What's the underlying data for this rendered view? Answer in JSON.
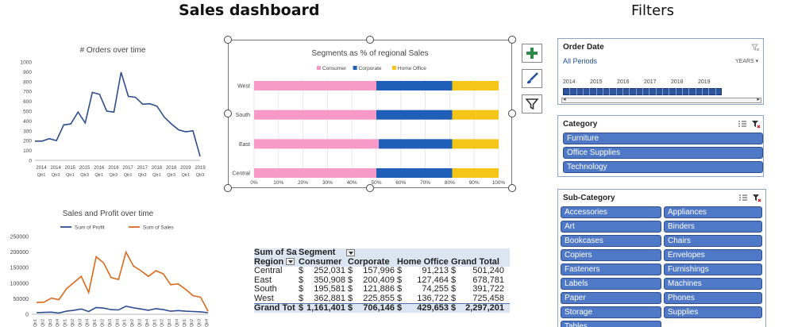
{
  "dashboard_title": "Sales dashboard",
  "filters_title": "Filters",
  "chart_data": [
    {
      "type": "line",
      "title": "# Orders over time",
      "x_labels": [
        [
          "2014",
          "Qtr1"
        ],
        [
          "2014",
          "Qtr3"
        ],
        [
          "2015",
          "Qtr1"
        ],
        [
          "2015",
          "Qtr3"
        ],
        [
          "2016",
          "Qtr1"
        ],
        [
          "2016",
          "Qtr3"
        ],
        [
          "2017",
          "Qtr1"
        ],
        [
          "2017",
          "Qtr3"
        ],
        [
          "2018",
          "Qtr1"
        ],
        [
          "2018",
          "Qtr3"
        ],
        [
          "2019",
          "Qtr1"
        ],
        [
          "2019",
          "Qtr3"
        ]
      ],
      "values": [
        195,
        195,
        220,
        200,
        360,
        370,
        490,
        380,
        690,
        670,
        500,
        490,
        895,
        650,
        640,
        570,
        575,
        550,
        440,
        370,
        310,
        290,
        300,
        40
      ],
      "yticks": [
        0,
        100,
        200,
        300,
        400,
        500,
        600,
        700,
        800,
        900,
        1000
      ],
      "ylim": [
        0,
        1000
      ],
      "color": "#2e4f8f"
    },
    {
      "type": "bar",
      "stacked": true,
      "title": "Segments as % of regional Sales",
      "categories": [
        "West",
        "South",
        "East",
        "Central"
      ],
      "series": [
        {
          "name": "Consumer",
          "color": "#f79ac8",
          "values": [
            50,
            50,
            51,
            50
          ]
        },
        {
          "name": "Corporate",
          "color": "#1f5fb8",
          "values": [
            31,
            31,
            30,
            31
          ]
        },
        {
          "name": "Home Office",
          "color": "#f5c518",
          "values": [
            19,
            19,
            19,
            19
          ]
        }
      ],
      "xticks": [
        "0%",
        "10%",
        "20%",
        "30%",
        "40%",
        "50%",
        "60%",
        "70%",
        "80%",
        "90%",
        "100%"
      ],
      "xlim": [
        0,
        100
      ]
    },
    {
      "type": "line",
      "title": "Sales and Profit over time",
      "series": [
        {
          "name": "Sum of Profit",
          "color": "#2e4f8f",
          "values": [
            5000,
            6000,
            7000,
            4000,
            10000,
            13000,
            17000,
            9000,
            22000,
            20000,
            15000,
            14000,
            26000,
            21000,
            17000,
            13000,
            18000,
            15000,
            10000,
            12000,
            10000,
            9000,
            8000,
            5000
          ]
        },
        {
          "name": "Sum of Sales",
          "color": "#d96a1b",
          "values": [
            38000,
            39000,
            52000,
            47000,
            82000,
            102000,
            122000,
            70000,
            185000,
            165000,
            118000,
            112000,
            200000,
            155000,
            140000,
            122000,
            140000,
            130000,
            95000,
            98000,
            80000,
            60000,
            55000,
            10000
          ]
        }
      ],
      "yticks": [
        0,
        50000,
        100000,
        150000,
        200000,
        250000
      ],
      "ylim": [
        0,
        250000
      ],
      "x_labels": [
        "Qtr1",
        "Qtr2",
        "Qtr3",
        "Qtr4",
        "Qtr1",
        "Qtr2",
        "Qtr3",
        "Qtr4",
        "Qtr1",
        "Qtr2",
        "Qtr3",
        "Qtr4",
        "Qtr1",
        "Qtr2",
        "Qtr3",
        "Qtr4",
        "Qtr1",
        "Qtr2",
        "Qtr3",
        "Qtr4",
        "Qtr1",
        "Qtr2",
        "Qtr3",
        "Qtr4"
      ]
    }
  ],
  "pivot": {
    "corner": "Sum of Sa",
    "segment_label": "Segment",
    "region_label": "Region",
    "columns": [
      "Consumer",
      "Corporate",
      "Home Office",
      "Grand Total"
    ],
    "rows": [
      {
        "region": "Central",
        "values": [
          "252,031",
          "157,996",
          "91,213",
          "501,240"
        ]
      },
      {
        "region": "East",
        "values": [
          "350,908",
          "200,409",
          "127,464",
          "678,781"
        ]
      },
      {
        "region": "South",
        "values": [
          "195,581",
          "121,886",
          "74,255",
          "391,722"
        ]
      },
      {
        "region": "West",
        "values": [
          "362,881",
          "225,855",
          "136,722",
          "725,458"
        ]
      }
    ],
    "total": {
      "region": "Grand Tot",
      "values": [
        "1,161,401",
        "706,146",
        "429,653",
        "2,297,201"
      ]
    },
    "currency": "$"
  },
  "timeline": {
    "title": "Order Date",
    "period": "All Periods",
    "unit": "YEARS",
    "years": [
      "2014",
      "2015",
      "2016",
      "2017",
      "2018",
      "2019"
    ]
  },
  "category": {
    "title": "Category",
    "items": [
      "Furniture",
      "Office Supplies",
      "Technology"
    ]
  },
  "subcategory": {
    "title": "Sub-Category",
    "left": [
      "Accessories",
      "Art",
      "Bookcases",
      "Copiers",
      "Fasteners",
      "Labels",
      "Paper",
      "Storage",
      "Tables"
    ],
    "right": [
      "Appliances",
      "Binders",
      "Chairs",
      "Envelopes",
      "Furnishings",
      "Machines",
      "Phones",
      "Supplies"
    ]
  },
  "icons": {
    "add": "plus-icon",
    "style": "paintbrush-icon",
    "filter": "funnel-icon",
    "multiselect": "multiselect-icon",
    "clear": "clear-filter-icon"
  }
}
